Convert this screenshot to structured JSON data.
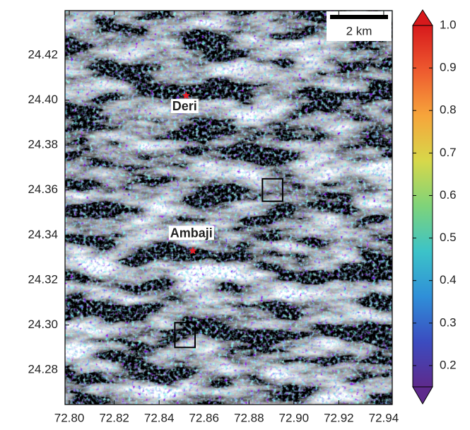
{
  "chart_data": {
    "type": "map",
    "xlim": [
      72.7981,
      72.9438
    ],
    "ylim": [
      24.2646,
      24.4398
    ],
    "xticks": [
      {
        "value": 72.8,
        "label": "72.80"
      },
      {
        "value": 72.82,
        "label": "72.82"
      },
      {
        "value": 72.84,
        "label": "72.84"
      },
      {
        "value": 72.86,
        "label": "72.86"
      },
      {
        "value": 72.88,
        "label": "72.88"
      },
      {
        "value": 72.9,
        "label": "72.90"
      },
      {
        "value": 72.92,
        "label": "72.92"
      },
      {
        "value": 72.94,
        "label": "72.94"
      }
    ],
    "yticks": [
      24.28,
      {
        "value": 24.3,
        "label": "24.30"
      },
      24.32,
      24.34,
      24.36,
      24.38,
      {
        "value": 24.4,
        "label": "24.40"
      },
      24.42
    ],
    "places": [
      {
        "name": "Deri",
        "lon": 72.852,
        "lat": 24.402
      },
      {
        "name": "Ambaji",
        "lon": 72.855,
        "lat": 24.333
      }
    ],
    "boxes": [
      {
        "lon": [
          72.886,
          72.895
        ],
        "lat": [
          24.355,
          24.365
        ]
      },
      {
        "lon": [
          72.847,
          72.856
        ],
        "lat": [
          24.29,
          24.301
        ]
      }
    ],
    "scale_bar": "2 km",
    "colorbar": {
      "clim": [
        0.15,
        1.0
      ],
      "ticks": [
        0.2,
        0.3,
        0.4,
        0.5,
        0.6,
        0.7,
        0.8,
        0.9,
        {
          "value": 1,
          "label": "1.0"
        }
      ],
      "colormap": [
        "#5e2a8c",
        "#3b4cc0",
        "#2f8fd8",
        "#3cc3c8",
        "#7ed37a",
        "#d7d84a",
        "#f6a53b",
        "#ee5a2f",
        "#d7191c"
      ]
    }
  }
}
